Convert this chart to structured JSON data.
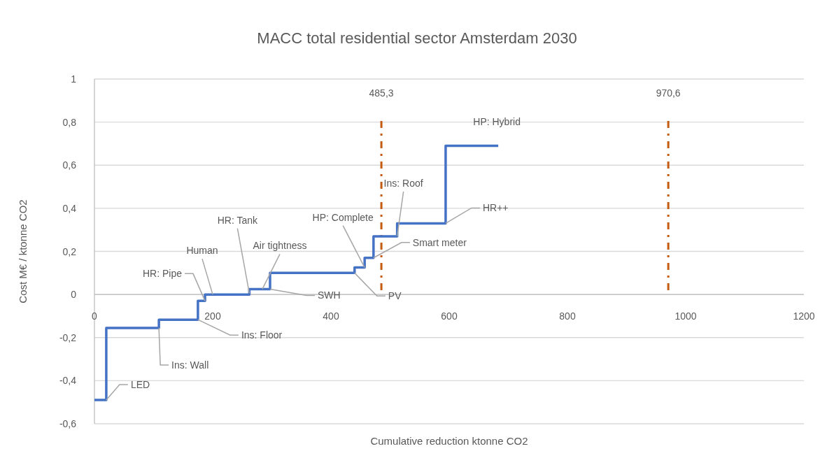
{
  "chart_data": {
    "type": "step",
    "title": "MACC total residential sector Amsterdam 2030",
    "xlabel": "Cumulative reduction ktonne CO2",
    "ylabel": "Cost M€ / ktonne CO2",
    "xlim": [
      0,
      1200
    ],
    "xticks": [
      0,
      200,
      400,
      600,
      800,
      1000,
      1200
    ],
    "ylim": [
      -0.6,
      1
    ],
    "yticks": [
      {
        "value": -0.6,
        "label": "-0,6"
      },
      {
        "value": -0.4,
        "label": "-0,4"
      },
      {
        "value": -0.2,
        "label": "-0,2"
      },
      0,
      {
        "value": 0.2,
        "label": "0,2"
      },
      {
        "value": 0.4,
        "label": "0,4"
      },
      {
        "value": 0.6,
        "label": "0,6"
      },
      {
        "value": 0.8,
        "label": "0,8"
      },
      1
    ],
    "grid": "y",
    "series": [
      {
        "color": "#4472c4",
        "x": [
          0,
          20,
          109,
          175,
          187,
          262,
          297,
          440,
          457,
          472,
          512,
          594,
          683
        ],
        "values": [
          -0.49,
          -0.155,
          -0.117,
          -0.03,
          0,
          0.025,
          0.1,
          0.125,
          0.17,
          0.27,
          0.33,
          0.69,
          0.69
        ]
      }
    ],
    "ref_lines": [
      {
        "axis": "x",
        "value": 485.3,
        "label": "485,3",
        "color": "#c55a11"
      },
      {
        "axis": "x",
        "value": 970.6,
        "label": "970,6",
        "color": "#c55a11"
      }
    ],
    "annotations": [
      {
        "text": "LED",
        "x": 20,
        "y": -0.49
      },
      {
        "text": "Ins: Wall",
        "x": 109,
        "y": -0.155
      },
      {
        "text": "Ins: Floor",
        "x": 175,
        "y": -0.117
      },
      {
        "text": "HR: Pipe",
        "x": 187,
        "y": -0.03
      },
      {
        "text": "Human",
        "x": 200,
        "y": 0
      },
      {
        "text": "HR: Tank",
        "x": 262,
        "y": 0.005
      },
      {
        "text": "Air tightness",
        "x": 284,
        "y": 0.025
      },
      {
        "text": "SWH",
        "x": 297,
        "y": 0.025
      },
      {
        "text": "PV",
        "x": 440,
        "y": 0.1
      },
      {
        "text": "HP: Complete",
        "x": 457,
        "y": 0.125
      },
      {
        "text": "Smart meter",
        "x": 472,
        "y": 0.17
      },
      {
        "text": "Ins: Roof",
        "x": 512,
        "y": 0.27
      },
      {
        "text": "HR++",
        "x": 594,
        "y": 0.33
      },
      {
        "text": "HP: Hybrid",
        "x": 683,
        "y": 0.69
      }
    ]
  }
}
